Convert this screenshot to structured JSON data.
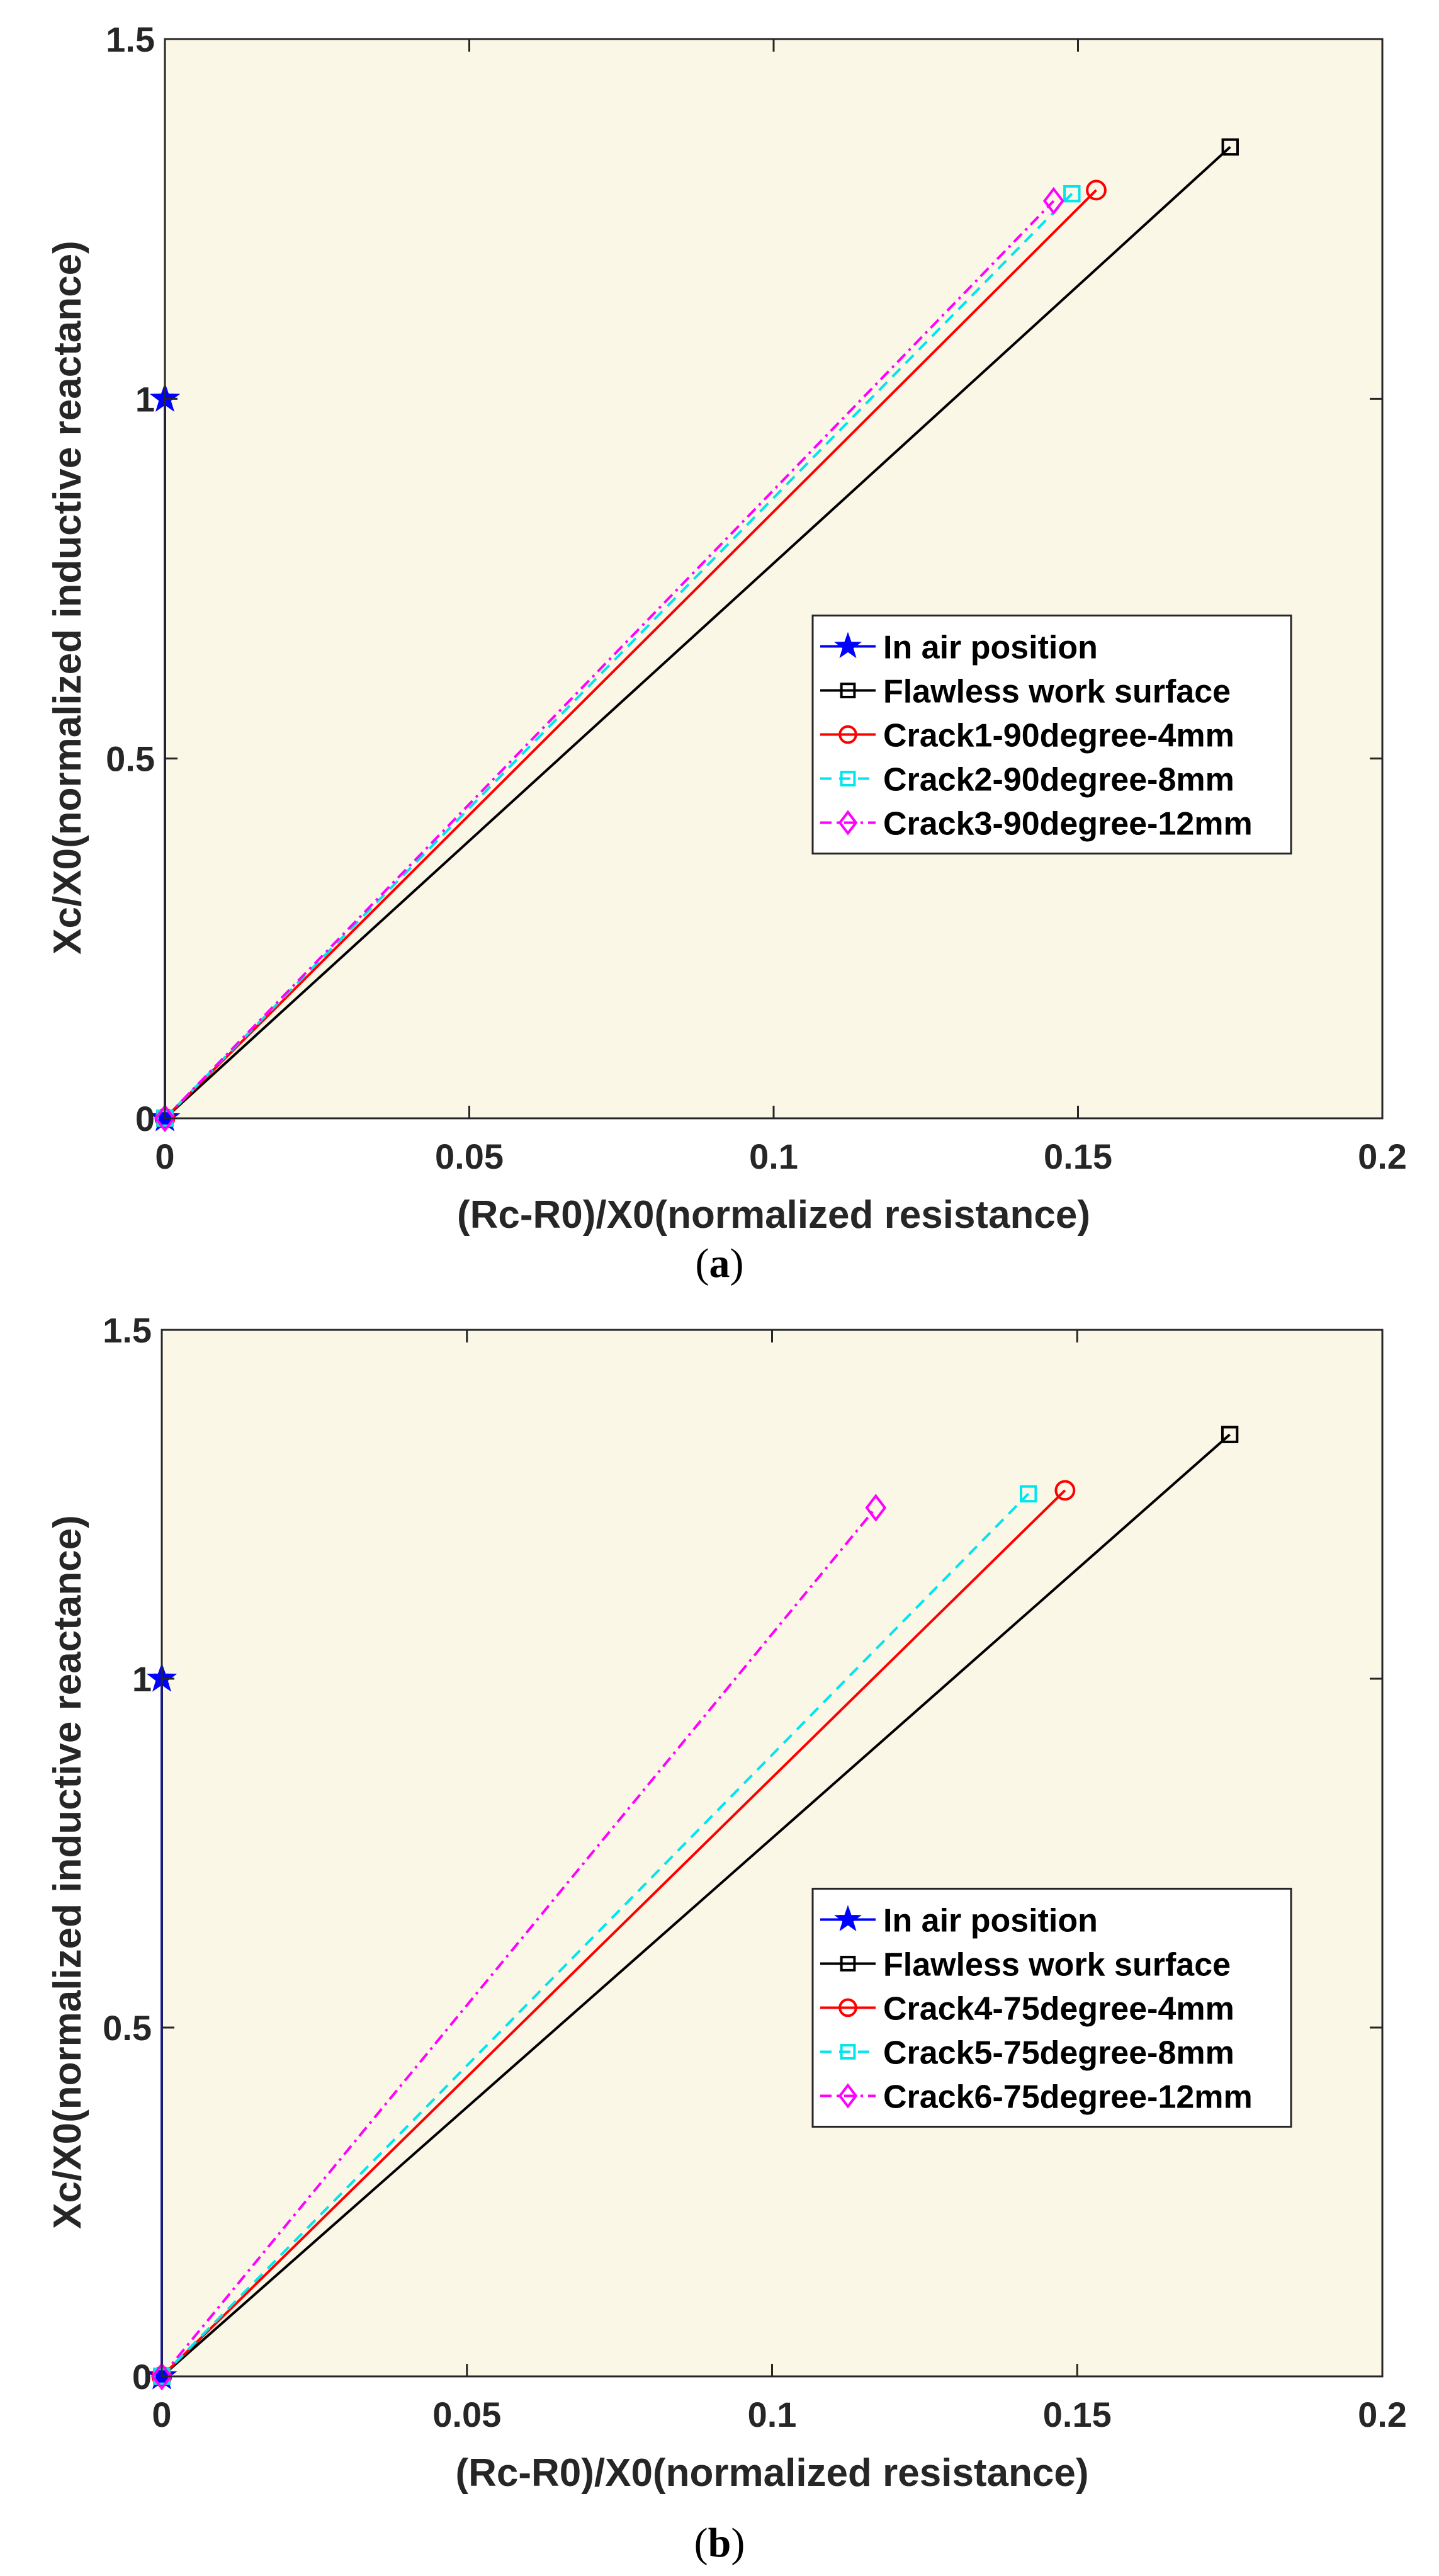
{
  "figure": {
    "panels": [
      {
        "caption_open": "(",
        "caption_letter": "a",
        "caption_close": ")",
        "chart_ref": 0
      },
      {
        "caption_open": "(",
        "caption_letter": "b",
        "caption_close": ")",
        "chart_ref": 1
      }
    ]
  },
  "colors": {
    "plot_background": "#fbf7e7",
    "axis": "#262626"
  },
  "chart_data": [
    {
      "type": "line",
      "title": "",
      "xlabel": "(Rc-R0)/X0(normalized resistance)",
      "ylabel": "Xc/X0(normalized inductive reactance)",
      "xlim": [
        0,
        0.2
      ],
      "ylim": [
        0,
        1.5
      ],
      "xticks": [
        0,
        0.05,
        0.1,
        0.15,
        0.2
      ],
      "xtick_labels": [
        "0",
        "0.05",
        "0.1",
        "0.15",
        "0.2"
      ],
      "yticks": [
        0,
        0.5,
        1,
        1.5
      ],
      "ytick_labels": [
        "0",
        "0.5",
        "1",
        "1.5"
      ],
      "grid": false,
      "legend_position": "center-right",
      "series": [
        {
          "name": "In air position",
          "color": "#0000ff",
          "dash": "solid",
          "marker": "star",
          "x": [
            0,
            0
          ],
          "y": [
            0,
            1
          ]
        },
        {
          "name": "Flawless work surface",
          "color": "#000000",
          "dash": "solid",
          "marker": "square",
          "x": [
            0,
            0.175
          ],
          "y": [
            0,
            1.35
          ]
        },
        {
          "name": "Crack1-90degree-4mm",
          "color": "#ff0000",
          "dash": "solid",
          "marker": "circle",
          "x": [
            0,
            0.153
          ],
          "y": [
            0,
            1.29
          ]
        },
        {
          "name": "Crack2-90degree-8mm",
          "color": "#00e5ee",
          "dash": "dashed",
          "marker": "square",
          "x": [
            0,
            0.149
          ],
          "y": [
            0,
            1.285
          ]
        },
        {
          "name": "Crack3-90degree-12mm",
          "color": "#ff00ff",
          "dash": "dashdot",
          "marker": "diamond",
          "x": [
            0,
            0.146
          ],
          "y": [
            0,
            1.275
          ]
        }
      ]
    },
    {
      "type": "line",
      "title": "",
      "xlabel": "(Rc-R0)/X0(normalized resistance)",
      "ylabel": "Xc/X0(normalized inductive reactance)",
      "xlim": [
        0,
        0.2
      ],
      "ylim": [
        0,
        1.5
      ],
      "xticks": [
        0,
        0.05,
        0.1,
        0.15,
        0.2
      ],
      "xtick_labels": [
        "0",
        "0.05",
        "0.1",
        "0.15",
        "0.2"
      ],
      "yticks": [
        0,
        0.5,
        1,
        1.5
      ],
      "ytick_labels": [
        "0",
        "0.5",
        "1",
        "1.5"
      ],
      "grid": false,
      "legend_position": "center-right",
      "series": [
        {
          "name": "In air position",
          "color": "#0000ff",
          "dash": "solid",
          "marker": "star",
          "x": [
            0,
            0
          ],
          "y": [
            0,
            1
          ]
        },
        {
          "name": "Flawless work surface",
          "color": "#000000",
          "dash": "solid",
          "marker": "square",
          "x": [
            0,
            0.175
          ],
          "y": [
            0,
            1.35
          ]
        },
        {
          "name": "Crack4-75degree-4mm",
          "color": "#ff0000",
          "dash": "solid",
          "marker": "circle",
          "x": [
            0,
            0.148
          ],
          "y": [
            0,
            1.27
          ]
        },
        {
          "name": "Crack5-75degree-8mm",
          "color": "#00e5ee",
          "dash": "dashed",
          "marker": "square",
          "x": [
            0,
            0.142
          ],
          "y": [
            0,
            1.265
          ]
        },
        {
          "name": "Crack6-75degree-12mm",
          "color": "#ff00ff",
          "dash": "dashdot",
          "marker": "diamond",
          "x": [
            0,
            0.117
          ],
          "y": [
            0,
            1.245
          ]
        }
      ]
    }
  ]
}
